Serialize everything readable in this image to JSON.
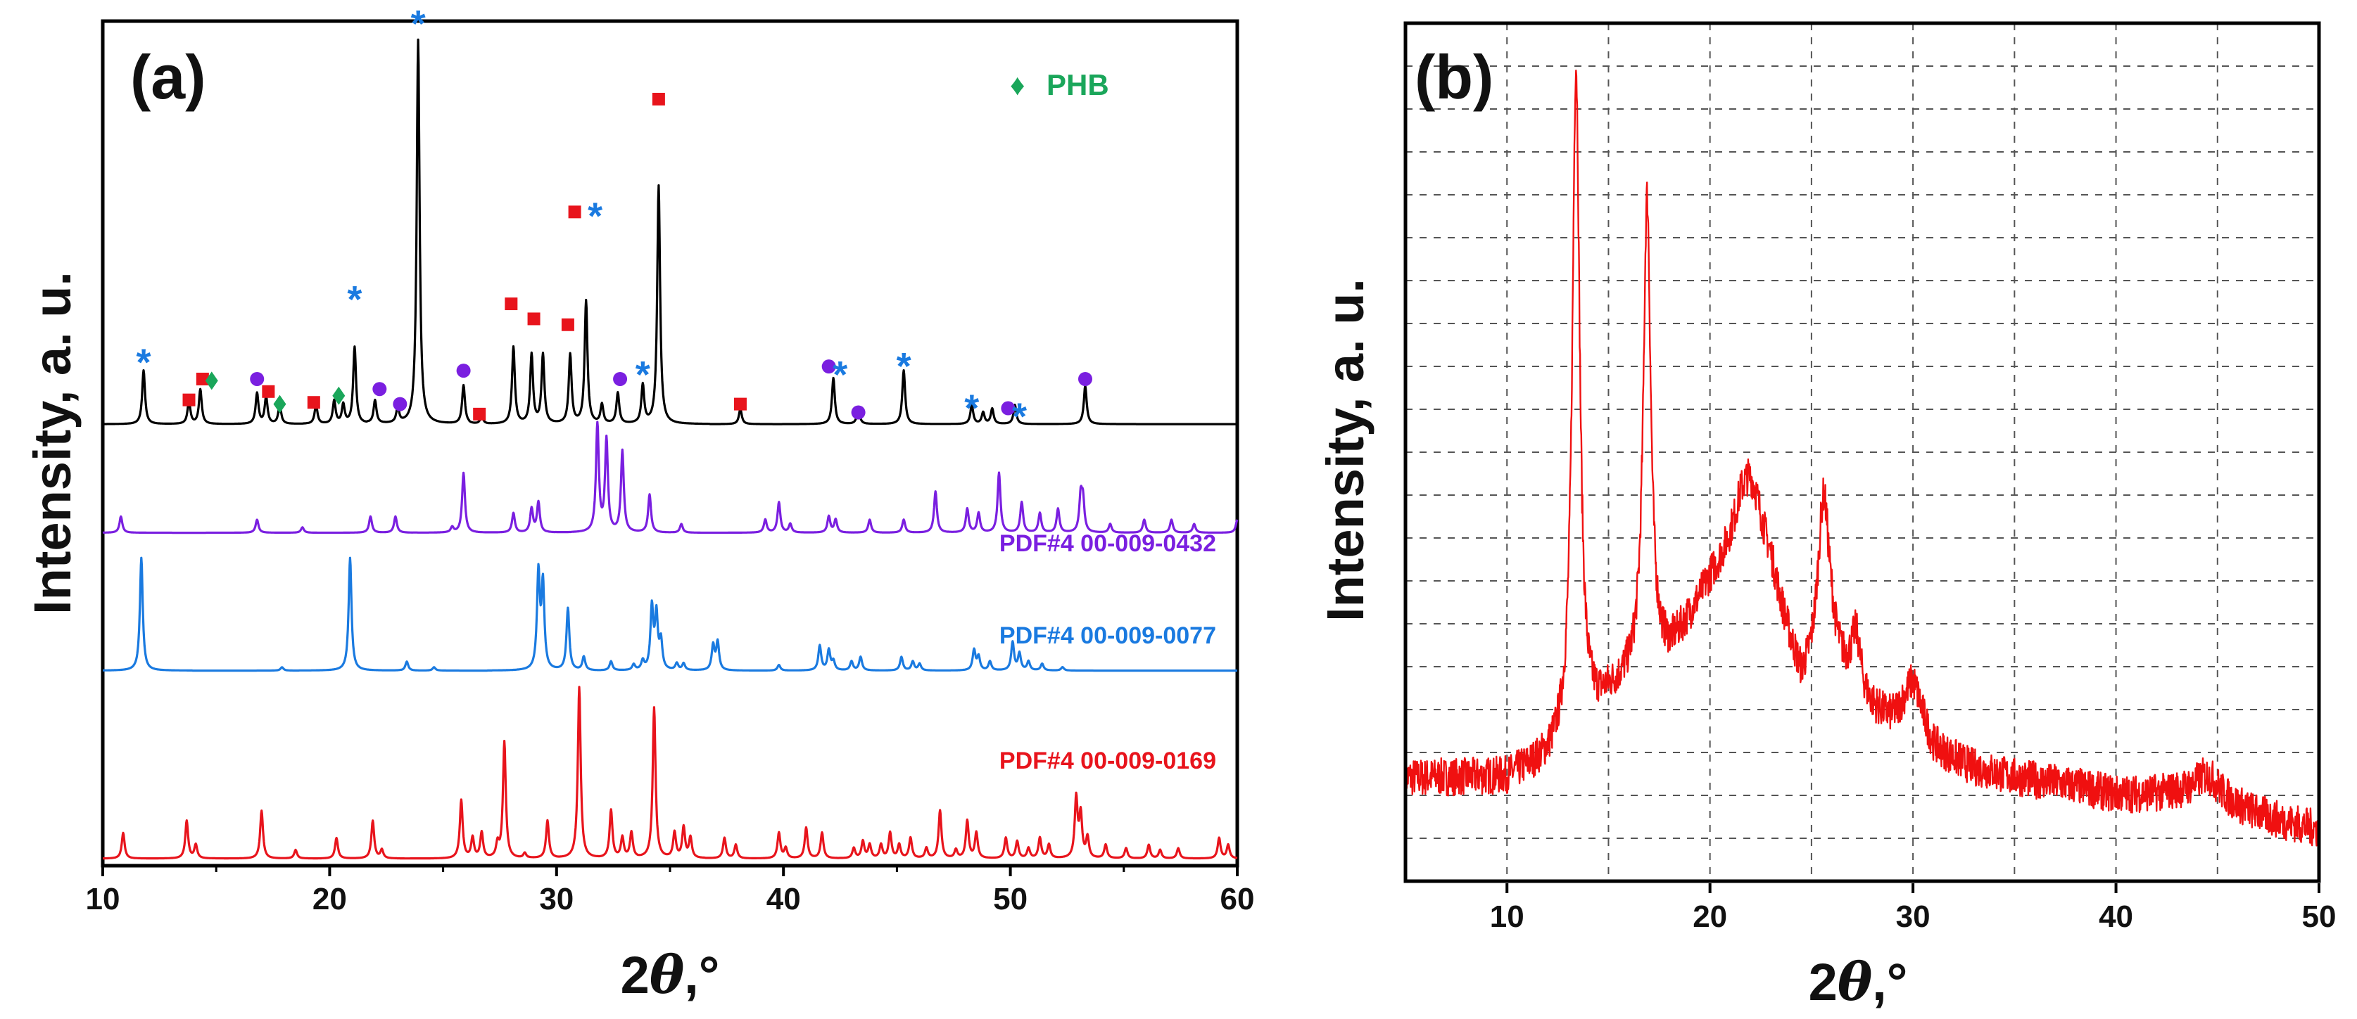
{
  "colors": {
    "sample": "#000000",
    "pdf0432": "#7a1fe0",
    "pdf0077": "#1a7ae0",
    "pdf0169": "#e8141c",
    "marker_square": "#e8141c",
    "marker_circle": "#7a1fe0",
    "marker_star": "#1a7ae0",
    "marker_diamond": "#1aa65a",
    "pattern_b": "#f01010"
  },
  "chart_data": [
    {
      "type": "line",
      "panel_label": "(a)",
      "xlabel_prefix": "2",
      "xlabel_theta": "θ",
      "xlabel_suffix": ",°",
      "ylabel": "Intensity, a. u.",
      "xlim": [
        10,
        60
      ],
      "xticks": [
        10,
        20,
        30,
        40,
        50,
        60
      ],
      "legend": {
        "symbol": "♦",
        "label": "PHB",
        "placement": "top-right"
      },
      "series": [
        {
          "name": "sample",
          "offset": 0.52,
          "height": 0.46,
          "peaks": [
            [
              11.8,
              0.14
            ],
            [
              13.8,
              0.06
            ],
            [
              14.3,
              0.09
            ],
            [
              16.8,
              0.08
            ],
            [
              17.2,
              0.07
            ],
            [
              17.8,
              0.05
            ],
            [
              19.4,
              0.05
            ],
            [
              20.2,
              0.06
            ],
            [
              20.6,
              0.05
            ],
            [
              21.1,
              0.2
            ],
            [
              22.0,
              0.06
            ],
            [
              23.0,
              0.04
            ],
            [
              23.9,
              1.0
            ],
            [
              25.9,
              0.1
            ],
            [
              26.7,
              0.02
            ],
            [
              28.1,
              0.2
            ],
            [
              28.9,
              0.18
            ],
            [
              29.4,
              0.18
            ],
            [
              30.6,
              0.18
            ],
            [
              31.3,
              0.32
            ],
            [
              32.0,
              0.05
            ],
            [
              32.7,
              0.08
            ],
            [
              33.8,
              0.1
            ],
            [
              34.5,
              0.62
            ],
            [
              38.1,
              0.04
            ],
            [
              42.2,
              0.12
            ],
            [
              43.3,
              0.04
            ],
            [
              45.3,
              0.14
            ],
            [
              48.3,
              0.05
            ],
            [
              48.8,
              0.03
            ],
            [
              49.2,
              0.04
            ],
            [
              50.2,
              0.05
            ],
            [
              53.3,
              0.1
            ]
          ]
        },
        {
          "name": "PDF#4 00-009-0432",
          "label": "PDF#4 00-009-0432",
          "offset": 0.39,
          "height": 0.13,
          "peaks": [
            [
              10.8,
              0.15
            ],
            [
              16.8,
              0.12
            ],
            [
              18.8,
              0.05
            ],
            [
              21.8,
              0.15
            ],
            [
              22.9,
              0.15
            ],
            [
              25.4,
              0.05
            ],
            [
              25.9,
              0.55
            ],
            [
              28.1,
              0.18
            ],
            [
              28.9,
              0.22
            ],
            [
              29.2,
              0.28
            ],
            [
              31.8,
              1.0
            ],
            [
              32.2,
              0.85
            ],
            [
              32.9,
              0.75
            ],
            [
              34.1,
              0.35
            ],
            [
              35.5,
              0.08
            ],
            [
              39.2,
              0.12
            ],
            [
              39.8,
              0.28
            ],
            [
              40.3,
              0.08
            ],
            [
              42.0,
              0.15
            ],
            [
              42.3,
              0.12
            ],
            [
              43.8,
              0.12
            ],
            [
              45.3,
              0.12
            ],
            [
              46.7,
              0.38
            ],
            [
              48.1,
              0.22
            ],
            [
              48.6,
              0.18
            ],
            [
              49.5,
              0.55
            ],
            [
              50.5,
              0.28
            ],
            [
              51.3,
              0.18
            ],
            [
              52.1,
              0.22
            ],
            [
              53.1,
              0.32
            ],
            [
              53.2,
              0.28
            ],
            [
              54.4,
              0.08
            ],
            [
              55.9,
              0.12
            ],
            [
              57.1,
              0.12
            ],
            [
              58.1,
              0.08
            ],
            [
              60.0,
              0.12
            ]
          ]
        },
        {
          "name": "PDF#4 00-009-0077",
          "label": "PDF#4 00-009-0077",
          "offset": 0.225,
          "height": 0.135,
          "peaks": [
            [
              11.7,
              1.0
            ],
            [
              17.9,
              0.03
            ],
            [
              20.9,
              1.0
            ],
            [
              23.4,
              0.08
            ],
            [
              24.6,
              0.03
            ],
            [
              29.2,
              0.85
            ],
            [
              29.4,
              0.75
            ],
            [
              30.5,
              0.55
            ],
            [
              31.2,
              0.12
            ],
            [
              32.4,
              0.08
            ],
            [
              33.4,
              0.05
            ],
            [
              33.8,
              0.08
            ],
            [
              34.2,
              0.55
            ],
            [
              34.4,
              0.48
            ],
            [
              34.6,
              0.25
            ],
            [
              35.3,
              0.06
            ],
            [
              35.6,
              0.06
            ],
            [
              36.9,
              0.22
            ],
            [
              37.1,
              0.25
            ],
            [
              39.8,
              0.05
            ],
            [
              41.6,
              0.22
            ],
            [
              42.0,
              0.18
            ],
            [
              42.2,
              0.08
            ],
            [
              43.0,
              0.08
            ],
            [
              43.4,
              0.12
            ],
            [
              45.2,
              0.12
            ],
            [
              45.7,
              0.08
            ],
            [
              46.0,
              0.06
            ],
            [
              48.4,
              0.18
            ],
            [
              48.6,
              0.12
            ],
            [
              49.1,
              0.08
            ],
            [
              50.1,
              0.25
            ],
            [
              50.4,
              0.15
            ],
            [
              50.8,
              0.08
            ],
            [
              51.4,
              0.06
            ],
            [
              52.3,
              0.03
            ]
          ]
        },
        {
          "name": "PDF#4 00-009-0169",
          "label": "PDF#4 00-009-0169",
          "offset": 0.0,
          "height": 0.205,
          "peaks": [
            [
              10.9,
              0.15
            ],
            [
              13.7,
              0.22
            ],
            [
              14.1,
              0.08
            ],
            [
              17.0,
              0.28
            ],
            [
              18.5,
              0.05
            ],
            [
              20.3,
              0.12
            ],
            [
              21.9,
              0.22
            ],
            [
              22.3,
              0.05
            ],
            [
              25.8,
              0.34
            ],
            [
              26.3,
              0.12
            ],
            [
              26.7,
              0.15
            ],
            [
              27.4,
              0.08
            ],
            [
              27.7,
              0.68
            ],
            [
              28.6,
              0.03
            ],
            [
              29.6,
              0.22
            ],
            [
              31.0,
              1.0
            ],
            [
              32.4,
              0.28
            ],
            [
              32.9,
              0.12
            ],
            [
              33.3,
              0.15
            ],
            [
              34.3,
              0.88
            ],
            [
              35.2,
              0.15
            ],
            [
              35.6,
              0.18
            ],
            [
              35.9,
              0.12
            ],
            [
              37.4,
              0.12
            ],
            [
              37.9,
              0.08
            ],
            [
              39.8,
              0.15
            ],
            [
              40.1,
              0.06
            ],
            [
              41.0,
              0.18
            ],
            [
              41.7,
              0.15
            ],
            [
              43.1,
              0.06
            ],
            [
              43.5,
              0.1
            ],
            [
              43.8,
              0.08
            ],
            [
              44.3,
              0.08
            ],
            [
              44.7,
              0.15
            ],
            [
              45.1,
              0.08
            ],
            [
              45.6,
              0.12
            ],
            [
              46.3,
              0.06
            ],
            [
              46.9,
              0.28
            ],
            [
              47.6,
              0.05
            ],
            [
              48.1,
              0.22
            ],
            [
              48.5,
              0.15
            ],
            [
              49.8,
              0.12
            ],
            [
              50.3,
              0.1
            ],
            [
              50.8,
              0.06
            ],
            [
              51.3,
              0.12
            ],
            [
              51.7,
              0.08
            ],
            [
              52.9,
              0.35
            ],
            [
              53.1,
              0.25
            ],
            [
              53.4,
              0.12
            ],
            [
              54.2,
              0.08
            ],
            [
              55.1,
              0.06
            ],
            [
              56.1,
              0.08
            ],
            [
              56.6,
              0.05
            ],
            [
              57.4,
              0.06
            ],
            [
              59.2,
              0.12
            ],
            [
              59.6,
              0.08
            ]
          ]
        }
      ],
      "markers": [
        {
          "x": 11.8,
          "y": 0.605,
          "s": "star"
        },
        {
          "x": 13.8,
          "y": 0.555,
          "s": "square"
        },
        {
          "x": 14.4,
          "y": 0.58,
          "s": "square"
        },
        {
          "x": 14.8,
          "y": 0.578,
          "s": "diamond"
        },
        {
          "x": 16.8,
          "y": 0.58,
          "s": "circle"
        },
        {
          "x": 17.3,
          "y": 0.565,
          "s": "square"
        },
        {
          "x": 17.8,
          "y": 0.55,
          "s": "diamond"
        },
        {
          "x": 19.3,
          "y": 0.552,
          "s": "square"
        },
        {
          "x": 20.4,
          "y": 0.56,
          "s": "diamond"
        },
        {
          "x": 21.1,
          "y": 0.68,
          "s": "star"
        },
        {
          "x": 22.2,
          "y": 0.568,
          "s": "circle"
        },
        {
          "x": 23.1,
          "y": 0.55,
          "s": "circle"
        },
        {
          "x": 23.9,
          "y": 1.01,
          "s": "star"
        },
        {
          "x": 25.9,
          "y": 0.59,
          "s": "circle"
        },
        {
          "x": 26.6,
          "y": 0.538,
          "s": "square"
        },
        {
          "x": 28.0,
          "y": 0.67,
          "s": "square"
        },
        {
          "x": 29.0,
          "y": 0.652,
          "s": "square"
        },
        {
          "x": 30.5,
          "y": 0.645,
          "s": "square"
        },
        {
          "x": 30.8,
          "y": 0.78,
          "s": "square"
        },
        {
          "x": 31.7,
          "y": 0.78,
          "s": "star"
        },
        {
          "x": 32.8,
          "y": 0.58,
          "s": "circle"
        },
        {
          "x": 33.8,
          "y": 0.59,
          "s": "star"
        },
        {
          "x": 34.5,
          "y": 0.915,
          "s": "square"
        },
        {
          "x": 38.1,
          "y": 0.55,
          "s": "square"
        },
        {
          "x": 42.0,
          "y": 0.595,
          "s": "circle"
        },
        {
          "x": 42.5,
          "y": 0.59,
          "s": "star"
        },
        {
          "x": 43.3,
          "y": 0.54,
          "s": "circle"
        },
        {
          "x": 45.3,
          "y": 0.6,
          "s": "star"
        },
        {
          "x": 48.3,
          "y": 0.55,
          "s": "star"
        },
        {
          "x": 49.9,
          "y": 0.545,
          "s": "circle"
        },
        {
          "x": 50.4,
          "y": 0.54,
          "s": "star"
        },
        {
          "x": 53.3,
          "y": 0.58,
          "s": "circle"
        }
      ]
    },
    {
      "type": "line",
      "panel_label": "(b)",
      "xlabel_prefix": "2",
      "xlabel_theta": "θ",
      "xlabel_suffix": ",°",
      "ylabel": "Intensity, a. u.",
      "xlim": [
        5,
        50
      ],
      "ylim": [
        0,
        100
      ],
      "grid": true,
      "xticks": [
        10,
        20,
        30,
        40,
        50
      ],
      "series": [
        {
          "name": "XRD pattern",
          "baseline": [
            [
              5,
              12
            ],
            [
              10,
              12
            ],
            [
              12,
              14
            ],
            [
              14,
              18
            ],
            [
              15,
              21
            ],
            [
              16,
              23
            ],
            [
              18,
              26
            ],
            [
              20,
              34
            ],
            [
              21.5,
              38
            ],
            [
              23,
              34
            ],
            [
              24.5,
              22
            ],
            [
              26,
              25
            ],
            [
              27.5,
              20
            ],
            [
              29,
              18
            ],
            [
              30,
              19
            ],
            [
              31,
              15
            ],
            [
              33,
              13
            ],
            [
              35,
              12
            ],
            [
              38,
              11
            ],
            [
              40,
              10
            ],
            [
              43,
              10
            ],
            [
              45,
              9
            ],
            [
              48,
              7
            ],
            [
              50,
              6
            ]
          ],
          "peaks": [
            [
              13.4,
              78,
              0.22
            ],
            [
              16.9,
              55,
              0.22
            ],
            [
              22.0,
              10,
              0.8
            ],
            [
              25.6,
              20,
              0.35
            ],
            [
              27.2,
              7,
              0.3
            ],
            [
              30.0,
              4,
              0.6
            ],
            [
              44.5,
              3,
              0.8
            ]
          ],
          "noise": 2.2
        }
      ]
    }
  ]
}
